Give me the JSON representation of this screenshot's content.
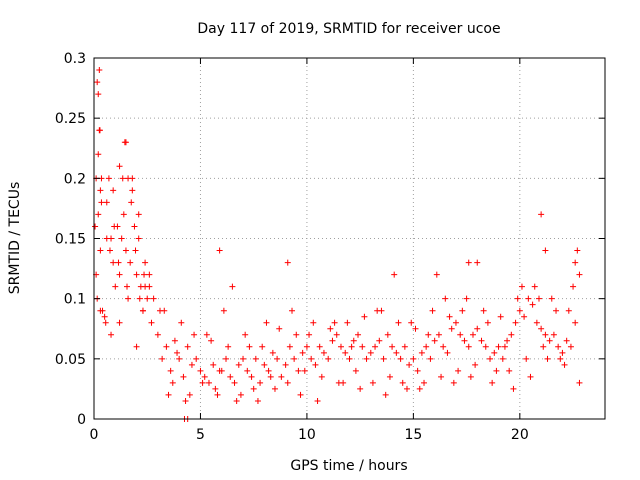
{
  "chart_data": {
    "type": "scatter",
    "title": "Day 117 of 2019, SRMTID for receiver ucoe",
    "xlabel": "GPS time / hours",
    "ylabel": "SRMTID / TECUs",
    "xlim": [
      0,
      24
    ],
    "ylim": [
      0,
      0.3
    ],
    "grid": true,
    "marker": "+",
    "color": "#ff0000",
    "x_ticks": [
      0,
      5,
      10,
      15,
      20
    ],
    "x_tick_labels": [
      "0",
      "5",
      "10",
      "15",
      "20"
    ],
    "y_ticks": [
      0,
      0.05,
      0.1,
      0.15,
      0.2,
      0.25,
      0.3
    ],
    "y_tick_labels": [
      "0",
      "0.05",
      "0.1",
      "0.15",
      "0.2",
      "0.25",
      "0.3"
    ],
    "series": [
      {
        "name": "SRMTID",
        "x": [
          0.05,
          0.1,
          0.15,
          0.2,
          0.25,
          0.3,
          0.1,
          0.2,
          0.3,
          0.4,
          0.5,
          0.6,
          0.7,
          0.8,
          0.9,
          1.0,
          1.1,
          1.2,
          1.3,
          1.4,
          1.5,
          1.6,
          1.7,
          1.8,
          1.9,
          2.0,
          2.1,
          2.2,
          2.3,
          2.4,
          2.5,
          2.6,
          2.7,
          2.8,
          0.15,
          0.35,
          0.55,
          0.75,
          0.95,
          1.15,
          1.35,
          1.55,
          1.75,
          1.95,
          2.15,
          2.35,
          0.3,
          0.6,
          0.9,
          1.2,
          1.5,
          1.8,
          2.1,
          2.4,
          0.25,
          0.28,
          0.2,
          0.35,
          1.45,
          1.6,
          1.2,
          0.8,
          2.0,
          2.3,
          2.6,
          3.0,
          3.2,
          3.4,
          3.6,
          3.8,
          4.0,
          4.2,
          4.4,
          4.6,
          4.8,
          5.0,
          5.2,
          5.4,
          5.6,
          5.8,
          6.0,
          6.2,
          6.4,
          6.6,
          6.8,
          7.0,
          7.2,
          7.4,
          7.6,
          7.8,
          8.0,
          8.2,
          8.4,
          8.6,
          8.8,
          9.0,
          9.2,
          9.4,
          9.6,
          9.8,
          10.0,
          10.2,
          10.4,
          10.6,
          10.8,
          11.0,
          11.2,
          11.4,
          11.6,
          11.8,
          12.0,
          12.2,
          12.4,
          12.6,
          12.8,
          13.0,
          13.2,
          13.4,
          13.6,
          13.8,
          14.0,
          14.2,
          14.4,
          14.6,
          14.8,
          15.0,
          15.2,
          15.4,
          15.6,
          15.8,
          16.0,
          16.2,
          16.4,
          16.6,
          16.8,
          17.0,
          17.2,
          17.4,
          17.6,
          17.8,
          18.0,
          18.2,
          18.4,
          18.6,
          18.8,
          19.0,
          19.2,
          19.4,
          19.6,
          19.8,
          20.0,
          20.2,
          20.4,
          20.6,
          20.8,
          21.0,
          21.2,
          21.4,
          21.6,
          21.8,
          22.0,
          22.2,
          22.4,
          22.6,
          22.8,
          3.1,
          3.5,
          3.9,
          4.3,
          4.7,
          5.1,
          5.5,
          5.9,
          6.3,
          6.7,
          7.1,
          7.5,
          7.9,
          8.3,
          8.7,
          9.1,
          9.5,
          9.9,
          10.3,
          10.7,
          11.1,
          11.5,
          11.9,
          12.3,
          12.7,
          13.1,
          13.5,
          13.9,
          14.3,
          14.7,
          15.1,
          15.5,
          15.9,
          16.3,
          16.7,
          17.1,
          17.5,
          17.9,
          18.3,
          18.7,
          19.1,
          19.5,
          19.9,
          20.3,
          20.7,
          21.1,
          21.5,
          21.9,
          22.3,
          22.7,
          5.9,
          6.5,
          9.1,
          14.1,
          16.1,
          17.6,
          18.0,
          21.0,
          21.2,
          22.6,
          22.8,
          3.3,
          4.1,
          5.3,
          6.1,
          7.3,
          8.1,
          9.3,
          10.1,
          11.3,
          12.1,
          13.3,
          14.9,
          15.7,
          16.5,
          17.3,
          18.5,
          19.3,
          20.1,
          20.9,
          21.7,
          22.5,
          3.7,
          4.5,
          5.7,
          6.9,
          7.7,
          8.5,
          9.7,
          10.5,
          11.7,
          12.5,
          13.7,
          14.5,
          15.3,
          16.9,
          17.7,
          18.9,
          19.7,
          20.5,
          21.3,
          22.1,
          4.25,
          4.4
        ],
        "y": [
          0.16,
          0.2,
          0.28,
          0.27,
          0.24,
          0.19,
          0.12,
          0.17,
          0.14,
          0.09,
          0.085,
          0.18,
          0.2,
          0.15,
          0.13,
          0.11,
          0.16,
          0.12,
          0.15,
          0.17,
          0.14,
          0.1,
          0.13,
          0.19,
          0.16,
          0.12,
          0.15,
          0.11,
          0.09,
          0.13,
          0.1,
          0.12,
          0.08,
          0.1,
          0.1,
          0.18,
          0.08,
          0.14,
          0.16,
          0.13,
          0.2,
          0.11,
          0.18,
          0.14,
          0.1,
          0.12,
          0.09,
          0.15,
          0.19,
          0.21,
          0.23,
          0.2,
          0.17,
          0.11,
          0.29,
          0.24,
          0.22,
          0.2,
          0.23,
          0.2,
          0.08,
          0.07,
          0.06,
          0.09,
          0.11,
          0.07,
          0.05,
          0.06,
          0.04,
          0.065,
          0.05,
          0.035,
          0.06,
          0.045,
          0.05,
          0.04,
          0.035,
          0.03,
          0.045,
          0.02,
          0.04,
          0.05,
          0.035,
          0.03,
          0.045,
          0.05,
          0.04,
          0.035,
          0.05,
          0.03,
          0.045,
          0.04,
          0.055,
          0.05,
          0.035,
          0.045,
          0.06,
          0.05,
          0.04,
          0.055,
          0.06,
          0.05,
          0.045,
          0.06,
          0.055,
          0.05,
          0.065,
          0.07,
          0.06,
          0.055,
          0.05,
          0.065,
          0.07,
          0.06,
          0.05,
          0.055,
          0.06,
          0.065,
          0.05,
          0.07,
          0.06,
          0.055,
          0.05,
          0.06,
          0.045,
          0.05,
          0.04,
          0.055,
          0.06,
          0.05,
          0.065,
          0.07,
          0.06,
          0.055,
          0.075,
          0.08,
          0.07,
          0.065,
          0.06,
          0.07,
          0.075,
          0.065,
          0.06,
          0.05,
          0.055,
          0.06,
          0.05,
          0.065,
          0.07,
          0.08,
          0.09,
          0.085,
          0.1,
          0.095,
          0.08,
          0.075,
          0.07,
          0.065,
          0.07,
          0.06,
          0.055,
          0.065,
          0.06,
          0.08,
          0.03,
          0.09,
          0.02,
          0.055,
          0.015,
          0.07,
          0.03,
          0.065,
          0.04,
          0.06,
          0.015,
          0.07,
          0.025,
          0.06,
          0.035,
          0.075,
          0.03,
          0.07,
          0.04,
          0.08,
          0.035,
          0.075,
          0.03,
          0.08,
          0.04,
          0.085,
          0.03,
          0.09,
          0.035,
          0.08,
          0.025,
          0.075,
          0.03,
          0.09,
          0.035,
          0.085,
          0.04,
          0.1,
          0.045,
          0.09,
          0.03,
          0.085,
          0.04,
          0.1,
          0.05,
          0.11,
          0.06,
          0.1,
          0.05,
          0.09,
          0.14,
          0.14,
          0.11,
          0.13,
          0.12,
          0.12,
          0.13,
          0.13,
          0.17,
          0.14,
          0.13,
          0.12,
          0.09,
          0.08,
          0.07,
          0.09,
          0.06,
          0.08,
          0.09,
          0.07,
          0.08,
          0.06,
          0.09,
          0.08,
          0.07,
          0.1,
          0.09,
          0.08,
          0.06,
          0.11,
          0.1,
          0.09,
          0.11,
          0.03,
          0.02,
          0.025,
          0.02,
          0.015,
          0.025,
          0.02,
          0.015,
          0.03,
          0.025,
          0.02,
          0.03,
          0.025,
          0.03,
          0.035,
          0.04,
          0.025,
          0.035,
          0.05,
          0.045,
          0.0,
          0.0
        ]
      }
    ]
  }
}
